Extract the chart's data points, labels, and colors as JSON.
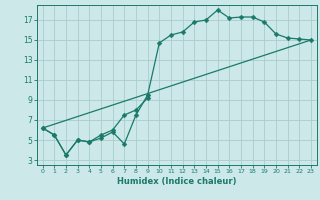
{
  "xlabel": "Humidex (Indice chaleur)",
  "bg_color": "#cce8e8",
  "grid_color": "#aacccc",
  "line_color": "#1a7a6a",
  "xlim": [
    -0.5,
    23.5
  ],
  "ylim": [
    2.5,
    18.5
  ],
  "yticks": [
    3,
    5,
    7,
    9,
    11,
    13,
    15,
    17
  ],
  "xticks": [
    0,
    1,
    2,
    3,
    4,
    5,
    6,
    7,
    8,
    9,
    10,
    11,
    12,
    13,
    14,
    15,
    16,
    17,
    18,
    19,
    20,
    21,
    22,
    23
  ],
  "line1_x": [
    0,
    1,
    2,
    3,
    4,
    5,
    6,
    7,
    8,
    9,
    10,
    11,
    12,
    13,
    14,
    15,
    16,
    17,
    18,
    19,
    20,
    21,
    22,
    23
  ],
  "line1_y": [
    6.2,
    5.5,
    3.5,
    5.0,
    4.8,
    5.2,
    5.8,
    4.6,
    7.5,
    9.5,
    14.7,
    15.5,
    15.8,
    16.8,
    17.0,
    18.0,
    17.2,
    17.3,
    17.3,
    16.8,
    15.6,
    15.2,
    15.1,
    15.0
  ],
  "line2_x": [
    0,
    1,
    2,
    3,
    4,
    5,
    6,
    7,
    8,
    9
  ],
  "line2_y": [
    6.2,
    5.5,
    3.5,
    5.0,
    4.8,
    5.5,
    6.0,
    7.5,
    8.0,
    9.2
  ],
  "line3_x": [
    0,
    23
  ],
  "line3_y": [
    6.2,
    15.0
  ]
}
